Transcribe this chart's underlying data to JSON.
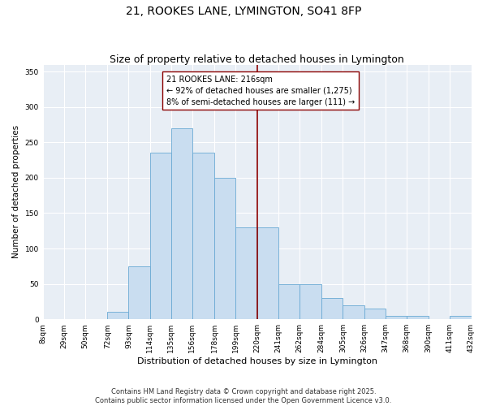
{
  "title": "21, ROOKES LANE, LYMINGTON, SO41 8FP",
  "subtitle": "Size of property relative to detached houses in Lymington",
  "xlabel": "Distribution of detached houses by size in Lymington",
  "ylabel": "Number of detached properties",
  "bin_edges": [
    8,
    29,
    50,
    72,
    93,
    114,
    135,
    156,
    178,
    199,
    220,
    241,
    262,
    284,
    305,
    326,
    347,
    368,
    390,
    411,
    432
  ],
  "bar_heights": [
    0,
    0,
    0,
    10,
    75,
    235,
    270,
    235,
    200,
    130,
    130,
    50,
    50,
    30,
    20,
    15,
    5,
    5,
    0,
    5
  ],
  "bar_facecolor": "#c9ddf0",
  "bar_edgecolor": "#6aaad4",
  "property_line_x": 220,
  "property_line_color": "#8b0000",
  "annotation_text": "21 ROOKES LANE: 216sqm\n← 92% of detached houses are smaller (1,275)\n8% of semi-detached houses are larger (111) →",
  "ylim": [
    0,
    360
  ],
  "yticks": [
    0,
    50,
    100,
    150,
    200,
    250,
    300,
    350
  ],
  "bg_color": "#e8eef5",
  "grid_color": "#ffffff",
  "footer_text": "Contains HM Land Registry data © Crown copyright and database right 2025.\nContains public sector information licensed under the Open Government Licence v3.0.",
  "title_fontsize": 10,
  "subtitle_fontsize": 9,
  "xlabel_fontsize": 8,
  "ylabel_fontsize": 7.5,
  "tick_fontsize": 6.5,
  "annotation_fontsize": 7,
  "footer_fontsize": 6
}
